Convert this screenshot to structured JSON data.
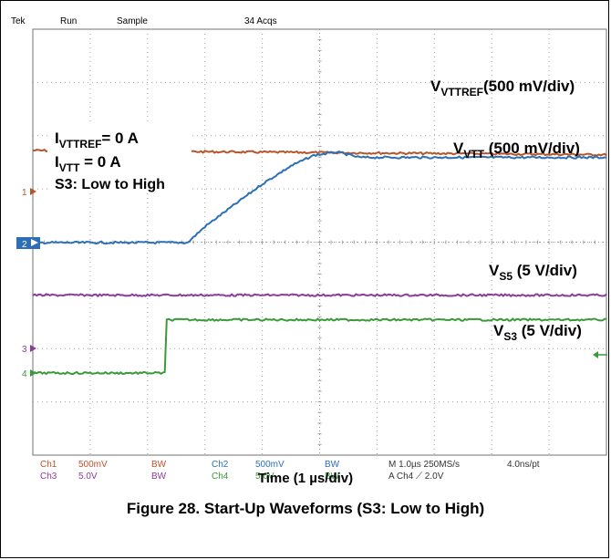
{
  "header": {
    "brand": "Tek",
    "state": "Run",
    "mode": "Sample",
    "acqs": "34 Acqs"
  },
  "annotations": {
    "vttref": {
      "main": "V",
      "sub": "VTTREF",
      "rest": "(500 mV/div)"
    },
    "vtt": {
      "main": "V",
      "sub": "VTT",
      "rest": " (500 mV/div)"
    },
    "vs5": {
      "main": "V",
      "sub": "S5",
      "rest": " (5 V/div)"
    },
    "vs3": {
      "main": "V",
      "sub": "S3",
      "rest": " (5 V/div)"
    },
    "cond1": {
      "main": "I",
      "sub": "VTTREF",
      "rest": "= 0 A"
    },
    "cond2": {
      "main": "I",
      "sub": "VTT",
      "rest": " = 0 A"
    },
    "cond3": "S3: Low to High"
  },
  "channel_markers": [
    "1",
    "2",
    "3",
    "4"
  ],
  "status": {
    "ch1": "Ch1",
    "ch1_scale": "500mV",
    "bw": "BW",
    "ch2": "Ch2",
    "ch2_scale": "500mV",
    "ch3": "Ch3",
    "ch3_scale": "5.0V",
    "ch4": "Ch4",
    "ch4_scale": "5.0V",
    "timebase": "M 1.0µs 250MS/s",
    "ptrate": "4.0ns/pt",
    "trigger": "A  Ch4  ⟋  2.0V"
  },
  "xlabel": "Time (1 µs/div)",
  "caption": "Figure 28. Start-Up Waveforms (S3: Low to High)",
  "chart_data": {
    "type": "line",
    "x_unit": "µs",
    "xlim": [
      0,
      10
    ],
    "grid": true,
    "series": [
      {
        "name": "VTTREF (500 mV/div)",
        "color": "#b8542a",
        "x": [
          0,
          10
        ],
        "y": [
          0.42,
          0.38
        ],
        "y_unit": "V"
      },
      {
        "name": "VTT (500 mV/div)",
        "color": "#2c6fb5",
        "x": [
          0,
          2.7,
          3.0,
          3.5,
          4.0,
          4.5,
          4.9,
          5.3,
          5.7,
          6.5,
          10
        ],
        "y": [
          0.0,
          0.0,
          0.15,
          0.35,
          0.55,
          0.72,
          0.82,
          0.85,
          0.8,
          0.8,
          0.8
        ],
        "y_unit": "V"
      },
      {
        "name": "VS5 (5 V/div)",
        "color": "#8a3c9a",
        "x": [
          0,
          10
        ],
        "y": [
          5.0,
          5.0
        ],
        "y_unit": "V"
      },
      {
        "name": "VS3 (5 V/div)",
        "color": "#3a9a3a",
        "x": [
          0,
          2.3,
          2.32,
          10
        ],
        "y": [
          0.0,
          0.0,
          5.0,
          5.0
        ],
        "y_unit": "V"
      }
    ]
  },
  "colors": {
    "vttref": "#b8542a",
    "vtt": "#2c6fb5",
    "vs5": "#8a3c9a",
    "vs3": "#3a9a3a",
    "trigger": "#f08020",
    "grid": "#a0a0a0"
  }
}
